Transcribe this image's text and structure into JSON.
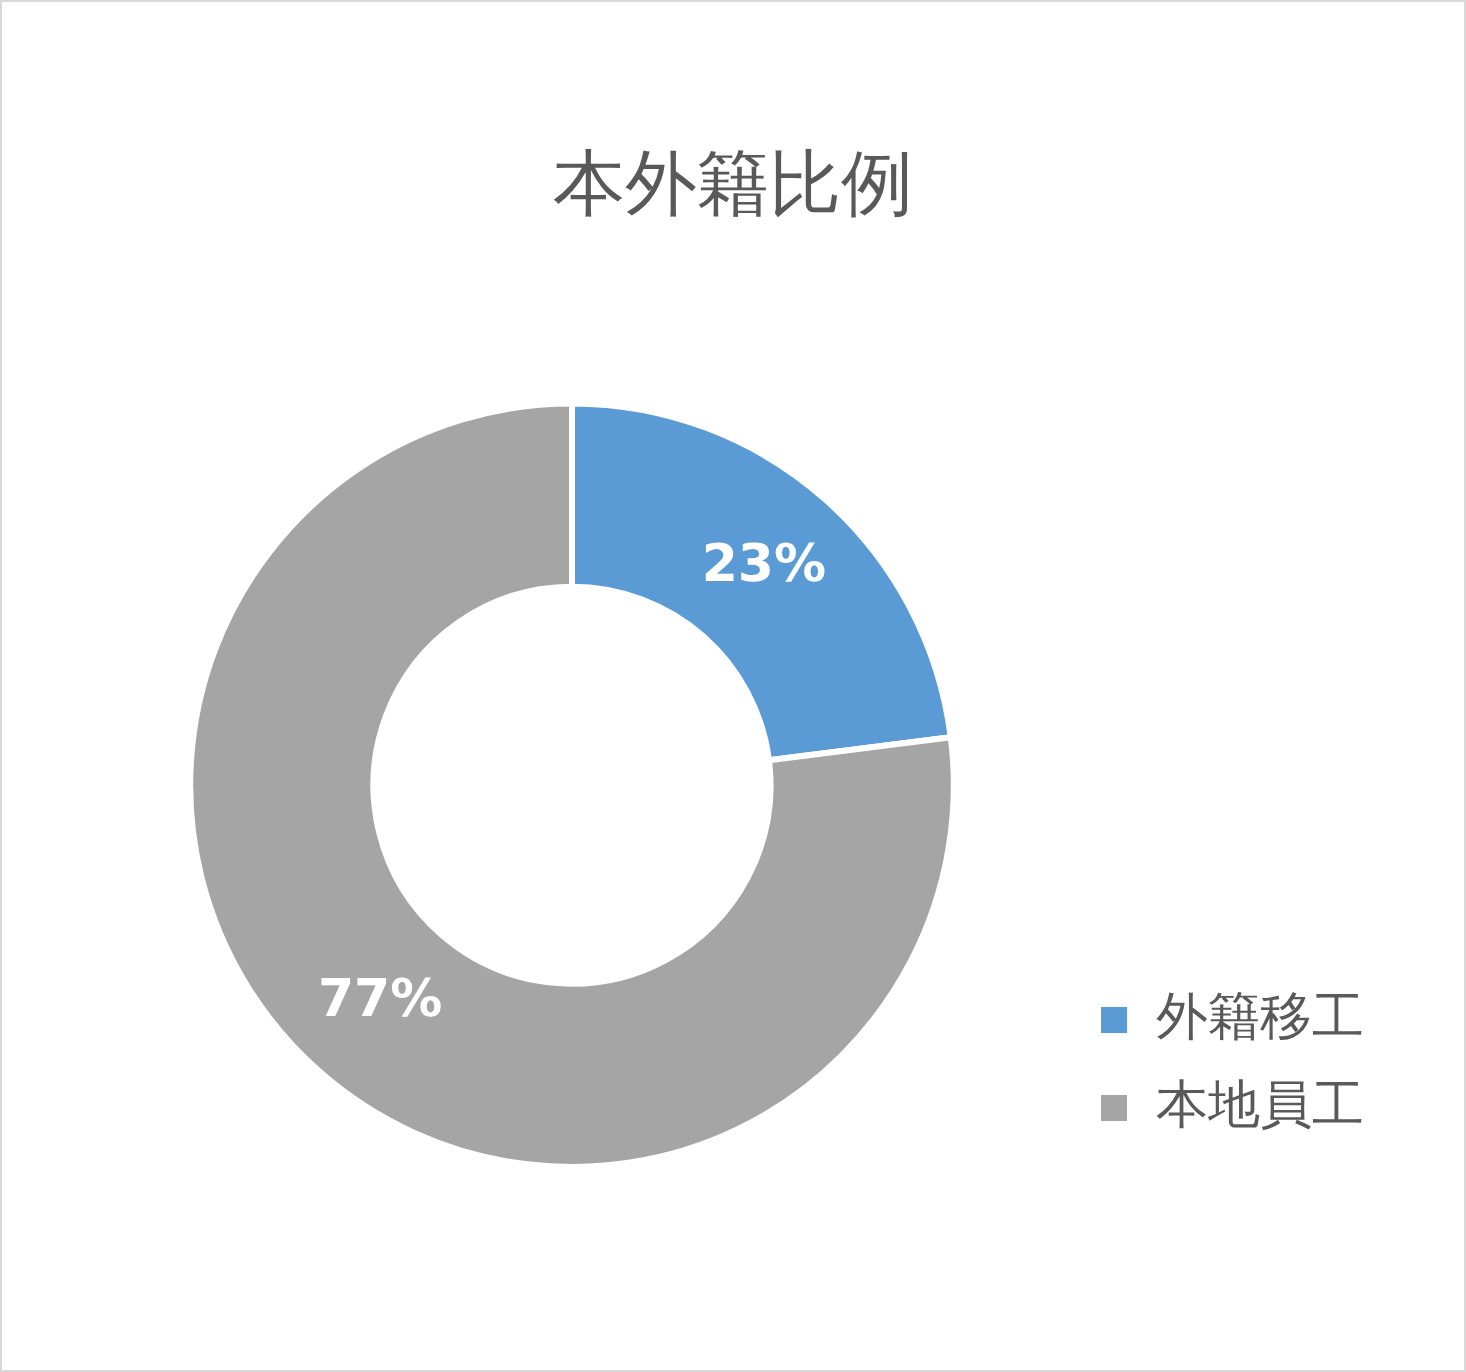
{
  "chart_data": {
    "type": "donut",
    "title": "本外籍比例",
    "categories": [
      "外籍移工",
      "本地員工"
    ],
    "values": [
      23,
      77
    ],
    "colors": [
      "#5b9bd5",
      "#a5a5a5"
    ],
    "value_labels": [
      "23%",
      "77%"
    ],
    "legend": "bottom right"
  }
}
